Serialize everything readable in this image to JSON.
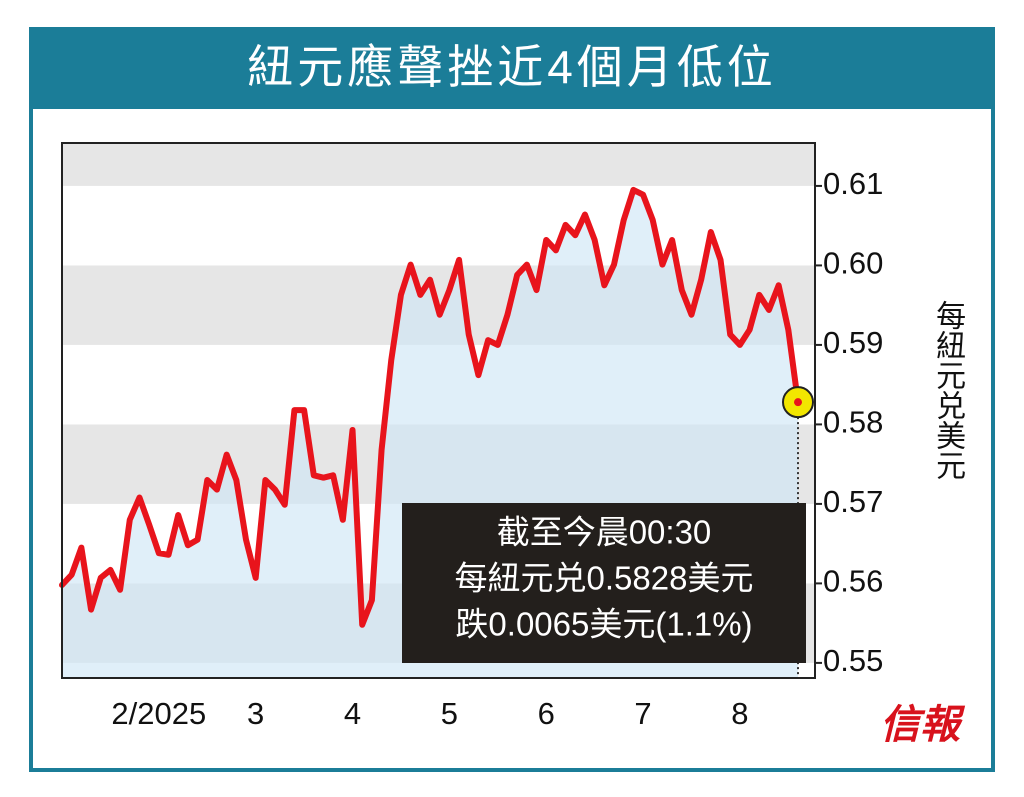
{
  "chart_data": {
    "type": "line",
    "title": "紐元應聲挫近4個月低位",
    "y_label": "每紐元兑美元",
    "annotation": [
      "截至今晨00:30",
      "每紐元兑0.5828美元",
      "跌0.0065美元(1.1%)"
    ],
    "brand": "信報",
    "categories": [
      null,
      null,
      null,
      null,
      null,
      null,
      null,
      null,
      null,
      null,
      "2/2025",
      null,
      null,
      null,
      null,
      null,
      null,
      null,
      null,
      null,
      "3",
      null,
      null,
      null,
      null,
      null,
      null,
      null,
      null,
      null,
      "4",
      null,
      null,
      null,
      null,
      null,
      null,
      null,
      null,
      null,
      "5",
      null,
      null,
      null,
      null,
      null,
      null,
      null,
      null,
      null,
      "6",
      null,
      null,
      null,
      null,
      null,
      null,
      null,
      null,
      null,
      "7",
      null,
      null,
      null,
      null,
      null,
      null,
      null,
      null,
      null,
      "8",
      null,
      null,
      null,
      null,
      null,
      null
    ],
    "values": [
      0.5598,
      0.5611,
      0.5645,
      0.5567,
      0.5607,
      0.5617,
      0.5592,
      0.568,
      0.5708,
      0.5674,
      0.5638,
      0.5636,
      0.5686,
      0.5648,
      0.5655,
      0.573,
      0.5718,
      0.5762,
      0.573,
      0.5655,
      0.5607,
      0.573,
      0.5718,
      0.5699,
      0.5818,
      0.5818,
      0.5736,
      0.5733,
      0.5736,
      0.568,
      0.5793,
      0.5548,
      0.5579,
      0.5768,
      0.5881,
      0.5963,
      0.6001,
      0.5963,
      0.5982,
      0.5938,
      0.5969,
      0.6007,
      0.5913,
      0.5862,
      0.5906,
      0.59,
      0.5938,
      0.5988,
      0.6001,
      0.5969,
      0.6032,
      0.6019,
      0.6051,
      0.6038,
      0.6064,
      0.6032,
      0.5975,
      0.6001,
      0.6057,
      0.6095,
      0.6089,
      0.6057,
      0.6001,
      0.6032,
      0.5969,
      0.5938,
      0.5982,
      0.6042,
      0.6007,
      0.5913,
      0.59,
      0.5919,
      0.5963,
      0.5944,
      0.5975,
      0.5919,
      0.5828
    ],
    "color": "#e8141c",
    "area_color": "#cfe7f6",
    "highlight_color": "#f2e600",
    "ylim": [
      0.5481,
      0.6154
    ],
    "yticks": [
      0.55,
      0.56,
      0.57,
      0.58,
      0.59,
      {
        "value": 0.6,
        "label": "0.60"
      },
      0.61
    ],
    "grid": true
  }
}
